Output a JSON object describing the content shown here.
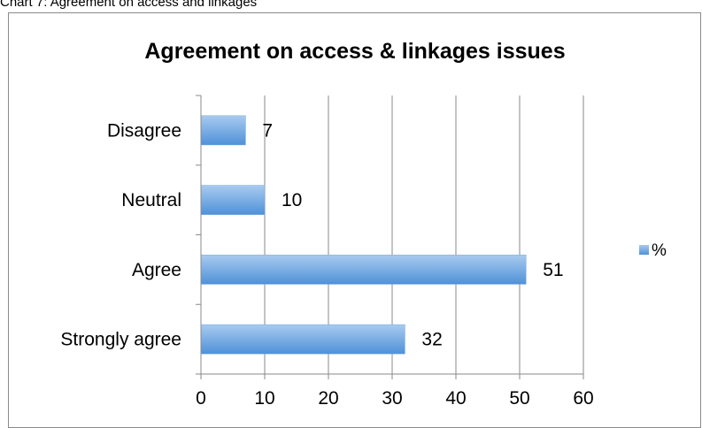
{
  "caption": "Chart 7: Agreement on access and linkages",
  "chart_data": {
    "type": "bar",
    "orientation": "horizontal",
    "title": "Agreement on access & linkages issues",
    "categories": [
      "Disagree",
      "Neutral",
      "Agree",
      "Strongly agree"
    ],
    "series": [
      {
        "name": "%",
        "values": [
          7,
          10,
          51,
          32
        ]
      }
    ],
    "data_labels": [
      "7",
      "10",
      "51",
      "32"
    ],
    "xlim": [
      0,
      60
    ],
    "x_ticks": [
      0,
      10,
      20,
      30,
      40,
      50,
      60
    ],
    "x_tick_labels": [
      "0",
      "10",
      "20",
      "30",
      "40",
      "50",
      "60"
    ],
    "xlabel": "",
    "ylabel": "",
    "grid": {
      "vertical": true,
      "horizontal": false
    },
    "legend": {
      "placement": "right",
      "entries": [
        "%"
      ]
    },
    "colors": {
      "bar": "#5b9bd5",
      "bar_light": "#a8cbef",
      "grid": "#8a8a8a"
    }
  }
}
